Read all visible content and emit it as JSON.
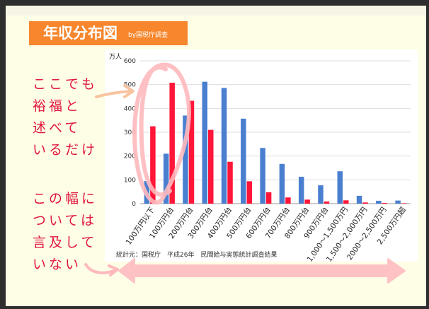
{
  "header": {
    "title": "年収分布図",
    "subtitle": "by国税庁調査"
  },
  "annotations": {
    "note1": [
      "ここでも",
      "裕福と",
      "述べて",
      "いるだけ"
    ],
    "note2": [
      "この幅に",
      "ついては",
      "言及して",
      "いない"
    ]
  },
  "colors": {
    "series_blue": "#4a7fd0",
    "series_red": "#ff1639",
    "title_bg": "#f7862c",
    "annotation": "#e0173c",
    "highlight": "#ffb9bc"
  },
  "chart_data": {
    "type": "bar",
    "unit_label": "万人",
    "source": "統計元：国税庁　平成26年　民間給与実態統計調査結果",
    "ylim": [
      0,
      600
    ],
    "yticks": [
      0,
      100,
      200,
      300,
      400,
      500,
      600
    ],
    "grid": true,
    "categories": [
      "100万円以下",
      "100万円台",
      "200万円台",
      "300万円台",
      "400万円台",
      "500万円台",
      "600万円台",
      "700万円台",
      "800万円台",
      "900万円台",
      "1,000～1,500万円",
      "1,500～2,000万円",
      "2000～2,500万円",
      "2,500万円超"
    ],
    "series": [
      {
        "color": "#4a7fd0",
        "values": [
          95,
          210,
          370,
          512,
          486,
          357,
          234,
          167,
          113,
          77,
          136,
          33,
          12,
          13
        ]
      },
      {
        "color": "#ff1639",
        "values": [
          325,
          508,
          432,
          310,
          176,
          94,
          48,
          26,
          17,
          9,
          14,
          5,
          3,
          2
        ]
      }
    ]
  }
}
